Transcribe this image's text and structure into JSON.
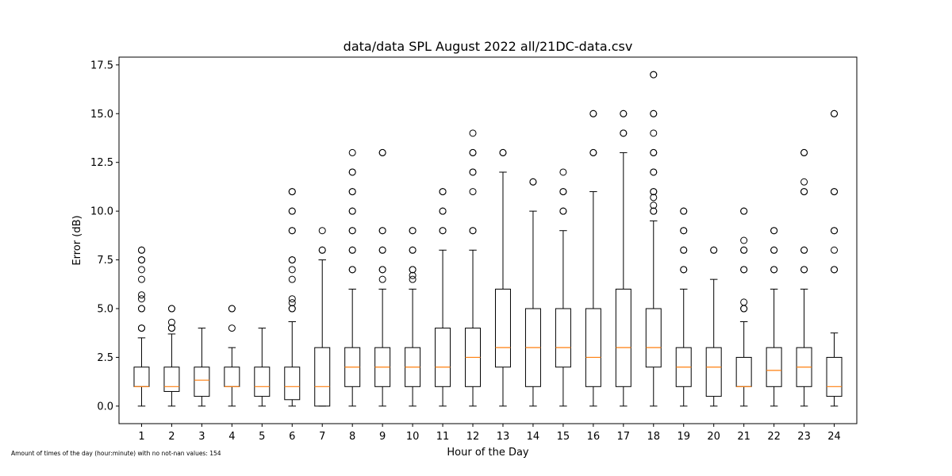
{
  "chart_data": {
    "type": "boxplot",
    "title": "data/data SPL August 2022 all/21DC-data.csv",
    "xlabel": "Hour of the Day",
    "ylabel": "Error (dB)",
    "ylim": [
      -0.9,
      17.9
    ],
    "yticks": [
      "0.0",
      "2.5",
      "5.0",
      "7.5",
      "10.0",
      "12.5",
      "15.0",
      "17.5"
    ],
    "ytick_values": [
      0,
      2.5,
      5,
      7.5,
      10,
      12.5,
      15,
      17.5
    ],
    "categories": [
      "1",
      "2",
      "3",
      "4",
      "5",
      "6",
      "7",
      "8",
      "9",
      "10",
      "11",
      "12",
      "13",
      "14",
      "15",
      "16",
      "17",
      "18",
      "19",
      "20",
      "21",
      "22",
      "23",
      "24"
    ],
    "box_color": "#000000",
    "median_color": "#ff7f0e",
    "boxes": [
      {
        "hour": "1",
        "whislo": 0,
        "q1": 1,
        "med": 1,
        "q3": 2,
        "whishi": 3.5,
        "fliers": [
          4,
          4,
          5,
          5,
          5.5,
          5.7,
          6.5,
          7,
          7.5,
          7.5,
          8,
          8
        ]
      },
      {
        "hour": "2",
        "whislo": 0,
        "q1": 0.75,
        "med": 1,
        "q3": 2,
        "whishi": 3.7,
        "fliers": [
          4,
          4,
          4.3,
          5,
          5
        ]
      },
      {
        "hour": "3",
        "whislo": 0,
        "q1": 0.5,
        "med": 1.33,
        "q3": 2,
        "whishi": 4,
        "fliers": []
      },
      {
        "hour": "4",
        "whislo": 0,
        "q1": 1,
        "med": 1,
        "q3": 2,
        "whishi": 3,
        "fliers": [
          4,
          5,
          5
        ]
      },
      {
        "hour": "5",
        "whislo": 0,
        "q1": 0.5,
        "med": 1,
        "q3": 2,
        "whishi": 4,
        "fliers": []
      },
      {
        "hour": "6",
        "whislo": 0,
        "q1": 0.33,
        "med": 1,
        "q3": 2,
        "whishi": 4.33,
        "fliers": [
          5,
          5,
          5.3,
          5.5,
          6.5,
          7,
          7.5,
          7.5,
          9,
          9,
          10,
          10,
          11,
          11
        ]
      },
      {
        "hour": "7",
        "whislo": 0,
        "q1": 0,
        "med": 1,
        "q3": 3,
        "whishi": 7.5,
        "fliers": [
          8,
          8,
          9
        ]
      },
      {
        "hour": "8",
        "whislo": 0,
        "q1": 1,
        "med": 2,
        "q3": 3,
        "whishi": 6,
        "fliers": [
          7,
          7,
          8,
          8,
          9,
          9,
          10,
          10,
          11,
          11,
          12,
          12,
          13
        ]
      },
      {
        "hour": "9",
        "whislo": 0,
        "q1": 1,
        "med": 2,
        "q3": 3,
        "whishi": 6,
        "fliers": [
          6.5,
          7,
          7,
          8,
          8,
          9,
          9,
          13,
          13
        ]
      },
      {
        "hour": "10",
        "whislo": 0,
        "q1": 1,
        "med": 2,
        "q3": 3,
        "whishi": 6,
        "fliers": [
          6.5,
          6.7,
          7,
          7,
          8,
          8,
          9,
          9
        ]
      },
      {
        "hour": "11",
        "whislo": 0,
        "q1": 1,
        "med": 2,
        "q3": 4,
        "whishi": 8,
        "fliers": [
          9,
          9,
          10,
          10,
          11,
          11
        ]
      },
      {
        "hour": "12",
        "whislo": 0,
        "q1": 1,
        "med": 2.5,
        "q3": 4,
        "whishi": 8,
        "fliers": [
          9,
          9,
          11,
          12,
          12,
          13,
          13,
          14
        ]
      },
      {
        "hour": "13",
        "whislo": 0,
        "q1": 2,
        "med": 3,
        "q3": 6,
        "whishi": 12,
        "fliers": [
          13,
          13
        ]
      },
      {
        "hour": "14",
        "whislo": 0,
        "q1": 1,
        "med": 3,
        "q3": 5,
        "whishi": 10,
        "fliers": [
          11.5,
          11.5
        ]
      },
      {
        "hour": "15",
        "whislo": 0,
        "q1": 2,
        "med": 3,
        "q3": 5,
        "whishi": 9,
        "fliers": [
          10,
          10,
          11,
          11,
          12
        ]
      },
      {
        "hour": "16",
        "whislo": 0,
        "q1": 1,
        "med": 2.5,
        "q3": 5,
        "whishi": 11,
        "fliers": [
          13,
          13,
          15,
          15
        ]
      },
      {
        "hour": "17",
        "whislo": 0,
        "q1": 1,
        "med": 3,
        "q3": 6,
        "whishi": 13,
        "fliers": [
          14,
          14,
          15,
          15
        ]
      },
      {
        "hour": "18",
        "whislo": 0,
        "q1": 2,
        "med": 3,
        "q3": 5,
        "whishi": 9.5,
        "fliers": [
          10,
          10,
          10.3,
          10.7,
          11,
          11,
          12,
          12,
          13,
          13,
          14,
          15,
          15,
          17,
          17
        ]
      },
      {
        "hour": "19",
        "whislo": 0,
        "q1": 1,
        "med": 2,
        "q3": 3,
        "whishi": 6,
        "fliers": [
          7,
          7,
          8,
          8,
          9,
          9,
          10,
          10
        ]
      },
      {
        "hour": "20",
        "whislo": 0,
        "q1": 0.5,
        "med": 2,
        "q3": 3,
        "whishi": 6.5,
        "fliers": [
          8,
          8
        ]
      },
      {
        "hour": "21",
        "whislo": 0,
        "q1": 1,
        "med": 1,
        "q3": 2.5,
        "whishi": 4.33,
        "fliers": [
          5,
          5,
          5.33,
          7,
          7,
          8,
          8,
          8.5,
          10,
          10
        ]
      },
      {
        "hour": "22",
        "whislo": 0,
        "q1": 1,
        "med": 1.83,
        "q3": 3,
        "whishi": 6,
        "fliers": [
          7,
          7,
          8,
          8,
          9,
          9
        ]
      },
      {
        "hour": "23",
        "whislo": 0,
        "q1": 1,
        "med": 2,
        "q3": 3,
        "whishi": 6,
        "fliers": [
          7,
          7,
          8,
          8,
          11,
          11,
          11.5,
          13,
          13
        ]
      },
      {
        "hour": "24",
        "whislo": 0,
        "q1": 0.5,
        "med": 1,
        "q3": 2.5,
        "whishi": 3.75,
        "fliers": [
          7,
          7,
          8,
          9,
          9,
          11,
          11,
          15,
          15
        ]
      }
    ]
  },
  "footnote": "Amount of times of the day (hour:minute) with no not-nan values: 154"
}
